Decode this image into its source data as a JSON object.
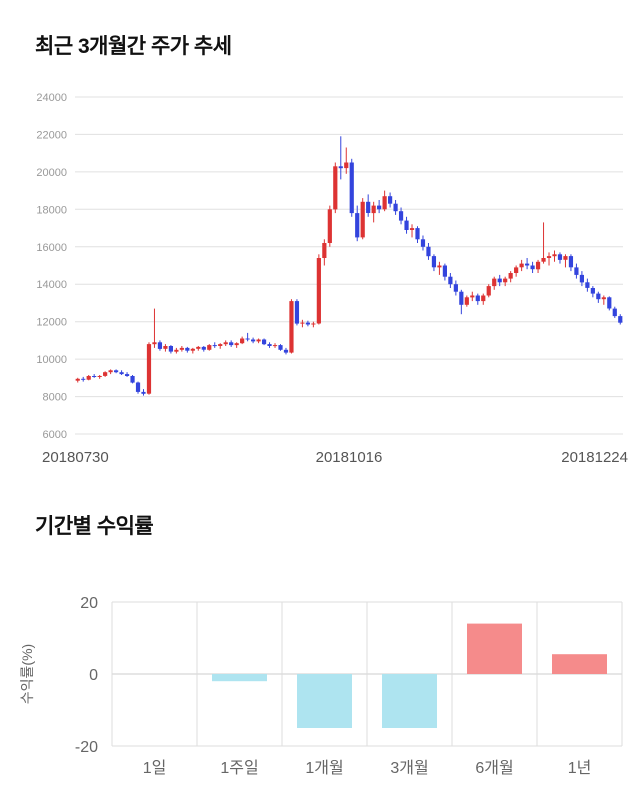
{
  "chart_data": [
    {
      "type": "candlestick",
      "title": "최근 3개월간 주가 추세",
      "x_axis_labels": [
        "20180730",
        "20181016",
        "20181224"
      ],
      "y_ticks": [
        6000,
        8000,
        10000,
        12000,
        14000,
        16000,
        18000,
        20000,
        22000,
        24000
      ],
      "ylim": [
        6000,
        24000
      ],
      "grid": true,
      "up_color": "#dd3333",
      "down_color": "#3344dd",
      "grid_color": "#e0e0e0",
      "ohlc_columns": [
        "date",
        "open",
        "high",
        "low",
        "close"
      ],
      "ohlc": [
        [
          "20180730",
          8850,
          9000,
          8750,
          8950
        ],
        [
          "20180731",
          8950,
          9050,
          8800,
          8900
        ],
        [
          "20180801",
          8900,
          9150,
          8870,
          9100
        ],
        [
          "20180802",
          9100,
          9200,
          9000,
          9050
        ],
        [
          "20180803",
          9050,
          9150,
          8950,
          9100
        ],
        [
          "20180806",
          9100,
          9350,
          9050,
          9300
        ],
        [
          "20180807",
          9300,
          9450,
          9200,
          9400
        ],
        [
          "20180808",
          9400,
          9450,
          9250,
          9300
        ],
        [
          "20180809",
          9300,
          9400,
          9150,
          9200
        ],
        [
          "20180810",
          9200,
          9300,
          9050,
          9100
        ],
        [
          "20180813",
          9100,
          9150,
          8700,
          8750
        ],
        [
          "20180814",
          8750,
          8800,
          8150,
          8250
        ],
        [
          "20180816",
          8250,
          8400,
          8050,
          8150
        ],
        [
          "20180817",
          8150,
          10900,
          8100,
          10800
        ],
        [
          "20180820",
          10800,
          12700,
          10600,
          10900
        ],
        [
          "20180821",
          10900,
          11000,
          10450,
          10550
        ],
        [
          "20180822",
          10550,
          10800,
          10400,
          10700
        ],
        [
          "20180823",
          10700,
          10750,
          10300,
          10400
        ],
        [
          "20180824",
          10400,
          10600,
          10300,
          10500
        ],
        [
          "20180827",
          10500,
          10700,
          10400,
          10600
        ],
        [
          "20180828",
          10600,
          10650,
          10350,
          10450
        ],
        [
          "20180829",
          10450,
          10600,
          10300,
          10550
        ],
        [
          "20180830",
          10550,
          10700,
          10450,
          10650
        ],
        [
          "20180831",
          10650,
          10700,
          10400,
          10500
        ],
        [
          "20180903",
          10500,
          10800,
          10450,
          10750
        ],
        [
          "20180904",
          10750,
          10900,
          10600,
          10700
        ],
        [
          "20180905",
          10700,
          10850,
          10550,
          10800
        ],
        [
          "20180906",
          10800,
          11000,
          10700,
          10900
        ],
        [
          "20180907",
          10900,
          11000,
          10650,
          10750
        ],
        [
          "20180910",
          10750,
          10900,
          10600,
          10850
        ],
        [
          "20180911",
          10850,
          11200,
          10800,
          11100
        ],
        [
          "20180912",
          11100,
          11400,
          10950,
          11050
        ],
        [
          "20180913",
          11050,
          11150,
          10850,
          10950
        ],
        [
          "20180914",
          10950,
          11100,
          10850,
          11050
        ],
        [
          "20180917",
          11050,
          11100,
          10750,
          10800
        ],
        [
          "20180918",
          10800,
          10900,
          10600,
          10700
        ],
        [
          "20180919",
          10700,
          10850,
          10600,
          10750
        ],
        [
          "20180920",
          10750,
          10800,
          10450,
          10500
        ],
        [
          "20180921",
          10500,
          10600,
          10250,
          10350
        ],
        [
          "20180927",
          10350,
          13200,
          10300,
          13100
        ],
        [
          "20180928",
          13100,
          13200,
          11800,
          11900
        ],
        [
          "20181001",
          11900,
          12100,
          11700,
          11950
        ],
        [
          "20181002",
          11950,
          12050,
          11750,
          11850
        ],
        [
          "20181004",
          11850,
          12000,
          11700,
          11900
        ],
        [
          "20181005",
          11900,
          15600,
          11850,
          15400
        ],
        [
          "20181008",
          15400,
          16400,
          15000,
          16200
        ],
        [
          "20181010",
          16200,
          18200,
          16000,
          18000
        ],
        [
          "20181011",
          18000,
          20500,
          17800,
          20300
        ],
        [
          "20181012",
          20300,
          21900,
          19600,
          20200
        ],
        [
          "20181015",
          20200,
          21300,
          19900,
          20500
        ],
        [
          "20181016",
          20500,
          20700,
          17600,
          17800
        ],
        [
          "20181017",
          17800,
          18200,
          16300,
          16500
        ],
        [
          "20181018",
          16500,
          18600,
          16400,
          18400
        ],
        [
          "20181019",
          18400,
          18800,
          17600,
          17800
        ],
        [
          "20181022",
          17800,
          18400,
          17300,
          18200
        ],
        [
          "20181023",
          18200,
          18500,
          17800,
          18000
        ],
        [
          "20181024",
          18000,
          19000,
          17900,
          18700
        ],
        [
          "20181025",
          18700,
          18900,
          18100,
          18300
        ],
        [
          "20181026",
          18300,
          18500,
          17700,
          17900
        ],
        [
          "20181029",
          17900,
          18100,
          17200,
          17400
        ],
        [
          "20181030",
          17400,
          17600,
          16700,
          16900
        ],
        [
          "20181031",
          16900,
          17200,
          16500,
          17000
        ],
        [
          "20181101",
          17000,
          17100,
          16200,
          16400
        ],
        [
          "20181102",
          16400,
          16600,
          15800,
          16000
        ],
        [
          "20181105",
          16000,
          16200,
          15300,
          15500
        ],
        [
          "20181106",
          15500,
          15600,
          14700,
          14900
        ],
        [
          "20181107",
          14900,
          15200,
          14500,
          15000
        ],
        [
          "20181108",
          15000,
          15100,
          14200,
          14400
        ],
        [
          "20181109",
          14400,
          14600,
          13800,
          14000
        ],
        [
          "20181112",
          14000,
          14200,
          13400,
          13600
        ],
        [
          "20181113",
          13600,
          13700,
          12400,
          12900
        ],
        [
          "20181114",
          12900,
          13400,
          12800,
          13300
        ],
        [
          "20181115",
          13300,
          13600,
          13100,
          13400
        ],
        [
          "20181116",
          13400,
          13500,
          12900,
          13100
        ],
        [
          "20181119",
          13100,
          13500,
          12900,
          13400
        ],
        [
          "20181120",
          13400,
          14000,
          13300,
          13900
        ],
        [
          "20181121",
          13900,
          14400,
          13700,
          14300
        ],
        [
          "20181122",
          14300,
          14500,
          13900,
          14100
        ],
        [
          "20181123",
          14100,
          14400,
          13900,
          14300
        ],
        [
          "20181126",
          14300,
          14700,
          14100,
          14600
        ],
        [
          "20181127",
          14600,
          15000,
          14400,
          14900
        ],
        [
          "20181128",
          14900,
          15300,
          14700,
          15100
        ],
        [
          "20181129",
          15100,
          15400,
          14800,
          15000
        ],
        [
          "20181130",
          15000,
          15200,
          14600,
          14800
        ],
        [
          "20181203",
          14800,
          15300,
          14600,
          15200
        ],
        [
          "20181204",
          15200,
          17300,
          15100,
          15400
        ],
        [
          "20181205",
          15400,
          15700,
          15000,
          15500
        ],
        [
          "20181206",
          15500,
          15800,
          15200,
          15600
        ],
        [
          "20181207",
          15600,
          15700,
          15100,
          15300
        ],
        [
          "20181210",
          15300,
          15600,
          14900,
          15500
        ],
        [
          "20181211",
          15500,
          15600,
          14700,
          14900
        ],
        [
          "20181212",
          14900,
          15100,
          14300,
          14500
        ],
        [
          "20181213",
          14500,
          14700,
          13900,
          14100
        ],
        [
          "20181214",
          14100,
          14300,
          13600,
          13800
        ],
        [
          "20181217",
          13800,
          13900,
          13300,
          13500
        ],
        [
          "20181218",
          13500,
          13600,
          13000,
          13200
        ],
        [
          "20181219",
          13200,
          13400,
          12900,
          13300
        ],
        [
          "20181220",
          13300,
          13350,
          12600,
          12700
        ],
        [
          "20181221",
          12700,
          12800,
          12200,
          12300
        ],
        [
          "20181224",
          12300,
          12400,
          11850,
          11950
        ]
      ]
    },
    {
      "type": "bar",
      "title": "기간별 수익률",
      "ylabel": "수익률(%)",
      "categories": [
        "1일",
        "1주일",
        "1개월",
        "3개월",
        "6개월",
        "1년"
      ],
      "values": [
        0,
        -2,
        -15,
        -15,
        14,
        5.5
      ],
      "y_ticks": [
        20,
        0,
        -20
      ],
      "ylim": [
        -20,
        20
      ],
      "grid": true,
      "legend": "none",
      "positive_color": "#f58b8b",
      "negative_color": "#aee4f0",
      "grid_color": "#dddddd",
      "zero_line_color": "#cccccc",
      "axis_text_color": "#666666"
    }
  ]
}
